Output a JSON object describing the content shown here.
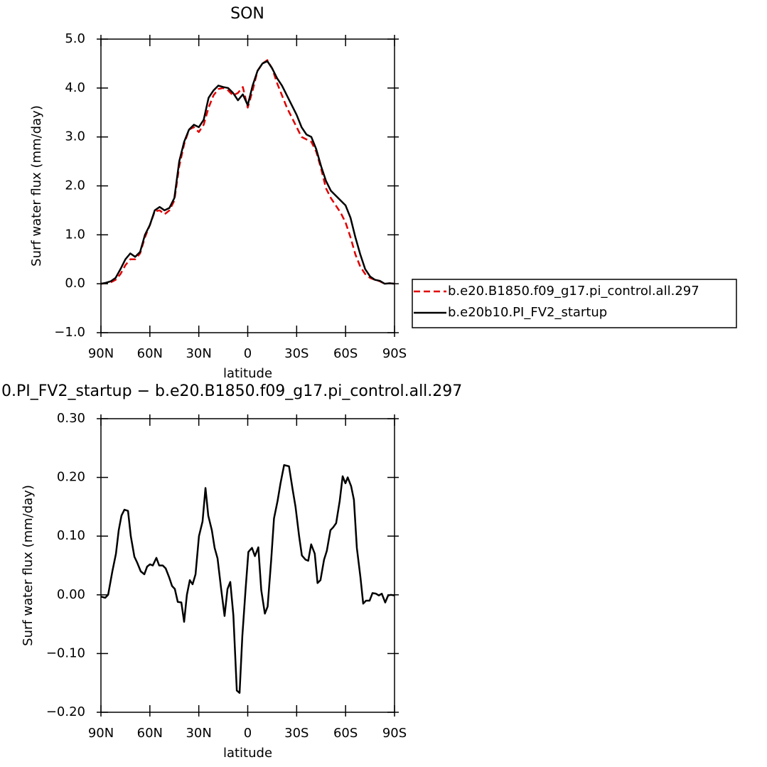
{
  "chart_data": [
    {
      "type": "line",
      "title": "SON",
      "xlabel": "latitude",
      "ylabel": "Surf water flux (mm/day)",
      "x": [
        90,
        87,
        84,
        81,
        78,
        75,
        72,
        69,
        66,
        63,
        60,
        57,
        54,
        51,
        48,
        45,
        42,
        39,
        36,
        33,
        30,
        27,
        24,
        21,
        18,
        15,
        12,
        9,
        6,
        3,
        0,
        -3,
        -6,
        -9,
        -12,
        -15,
        -18,
        -21,
        -24,
        -27,
        -30,
        -33,
        -36,
        -39,
        -42,
        -45,
        -48,
        -51,
        -54,
        -57,
        -60,
        -63,
        -66,
        -69,
        -72,
        -75,
        -78,
        -81,
        -84,
        -87,
        -90
      ],
      "series": [
        {
          "name": "b.e20.B1850.f09_g17.pi_control.all.297",
          "color": "#e00000",
          "dashed": true,
          "values": [
            0,
            0.01,
            0.03,
            0.08,
            0.2,
            0.38,
            0.5,
            0.5,
            0.62,
            0.95,
            1.2,
            1.48,
            1.5,
            1.42,
            1.5,
            1.7,
            2.4,
            2.85,
            3.15,
            3.2,
            3.1,
            3.25,
            3.6,
            3.85,
            3.98,
            4.0,
            3.95,
            3.85,
            3.9,
            4.02,
            3.6,
            3.95,
            4.35,
            4.5,
            4.57,
            4.4,
            4.1,
            3.85,
            3.6,
            3.4,
            3.2,
            3.0,
            2.95,
            2.9,
            2.7,
            2.35,
            1.95,
            1.75,
            1.6,
            1.45,
            1.25,
            0.95,
            0.6,
            0.35,
            0.2,
            0.12,
            0.08,
            0.05,
            0,
            0.01,
            0
          ]
        },
        {
          "name": "b.e20b10.PI_FV2_startup",
          "color": "#000000",
          "dashed": false,
          "values": [
            0,
            0.02,
            0.05,
            0.12,
            0.3,
            0.5,
            0.62,
            0.55,
            0.65,
            1.0,
            1.2,
            1.5,
            1.57,
            1.5,
            1.55,
            1.75,
            2.5,
            2.9,
            3.15,
            3.25,
            3.2,
            3.35,
            3.8,
            3.95,
            4.05,
            4.02,
            4.0,
            3.9,
            3.75,
            3.87,
            3.65,
            4.05,
            4.35,
            4.5,
            4.55,
            4.4,
            4.2,
            4.05,
            3.85,
            3.65,
            3.45,
            3.2,
            3.05,
            3.0,
            2.75,
            2.4,
            2.1,
            1.9,
            1.8,
            1.7,
            1.6,
            1.35,
            0.95,
            0.6,
            0.3,
            0.15,
            0.08,
            0.06,
            0,
            0.01,
            0
          ]
        }
      ],
      "xlim": [
        90,
        -90
      ],
      "xticks": [
        {
          "value": 90,
          "label": "90N"
        },
        {
          "value": 60,
          "label": "60N"
        },
        {
          "value": 30,
          "label": "30N"
        },
        0,
        {
          "value": -30,
          "label": "30S"
        },
        {
          "value": -60,
          "label": "60S"
        },
        {
          "value": -90,
          "label": "90S"
        }
      ],
      "ylim": [
        -1,
        5
      ],
      "yticks": [
        {
          "value": -1,
          "label": "−1.0"
        },
        {
          "value": 0,
          "label": "0.0"
        },
        {
          "value": 1,
          "label": "1.0"
        },
        {
          "value": 2,
          "label": "2.0"
        },
        {
          "value": 3,
          "label": "3.0"
        },
        {
          "value": 4,
          "label": "4.0"
        },
        {
          "value": 5,
          "label": "5.0"
        }
      ],
      "legend": "right"
    },
    {
      "type": "line",
      "title": "0.PI_FV2_startup − b.e20.B1850.f09_g17.pi_control.all.297",
      "xlabel": "latitude",
      "ylabel": "Surf water flux (mm/day)",
      "x": [
        90,
        87.4,
        85.6,
        83,
        80.8,
        79.1,
        77.4,
        75.6,
        73.4,
        71.7,
        69.5,
        67.8,
        65.6,
        63.4,
        61.7,
        59.9,
        58.2,
        56,
        54.3,
        52.1,
        50.3,
        48.2,
        46.4,
        44.7,
        42.9,
        40.7,
        39,
        37.3,
        35.5,
        33.8,
        32,
        29.9,
        27.7,
        25.9,
        24.2,
        22,
        20.3,
        18.5,
        16.3,
        14.2,
        12.4,
        10.7,
        8.8,
        6.7,
        5,
        3.3,
        1.3,
        -0.4,
        -2.6,
        -4.4,
        -6.5,
        -8.3,
        -10.5,
        -12.2,
        -14.4,
        -16.1,
        -18.3,
        -20.1,
        -22.3,
        -25.3,
        -27.5,
        -29.3,
        -31.5,
        -33.2,
        -35.4,
        -37.1,
        -38.9,
        -41.1,
        -42.8,
        -44.6,
        -46.8,
        -48.5,
        -50.7,
        -52.4,
        -54.2,
        -56.4,
        -58.2,
        -59.9,
        -61.3,
        -63.4,
        -65.1,
        -66.9,
        -69.1,
        -70.8,
        -72.5,
        -74.7,
        -76.5,
        -78.6,
        -80.4,
        -82.2,
        -84.3,
        -86.1,
        -87.8,
        -90
      ],
      "series": [
        {
          "color": "#000000",
          "dashed": false,
          "values": [
            -0.003,
            -0.005,
            0,
            0.04,
            0.07,
            0.11,
            0.135,
            0.145,
            0.143,
            0.1,
            0.065,
            0.055,
            0.04,
            0.035,
            0.048,
            0.052,
            0.05,
            0.063,
            0.05,
            0.05,
            0.045,
            0.03,
            0.015,
            0.01,
            -0.012,
            -0.013,
            -0.046,
            0,
            0.025,
            0.018,
            0.035,
            0.1,
            0.125,
            0.182,
            0.135,
            0.11,
            0.08,
            0.062,
            0.01,
            -0.036,
            0.01,
            0.022,
            -0.035,
            -0.163,
            -0.167,
            -0.07,
            0.01,
            0.073,
            0.08,
            0.066,
            0.081,
            0.008,
            -0.032,
            -0.02,
            0.06,
            0.13,
            0.16,
            0.19,
            0.221,
            0.219,
            0.18,
            0.15,
            0.1,
            0.067,
            0.06,
            0.058,
            0.086,
            0.07,
            0.02,
            0.025,
            0.06,
            0.075,
            0.11,
            0.115,
            0.122,
            0.16,
            0.202,
            0.19,
            0.2,
            0.185,
            0.162,
            0.08,
            0.03,
            -0.015,
            -0.01,
            -0.01,
            0.003,
            0.002,
            -0.001,
            0.002,
            -0.013,
            -0.001,
            0,
            -0.001
          ]
        }
      ],
      "xlim": [
        90,
        -90
      ],
      "xticks": [
        {
          "value": 90,
          "label": "90N"
        },
        {
          "value": 60,
          "label": "60N"
        },
        {
          "value": 30,
          "label": "30N"
        },
        0,
        {
          "value": -30,
          "label": "30S"
        },
        {
          "value": -60,
          "label": "60S"
        },
        {
          "value": -90,
          "label": "90S"
        }
      ],
      "ylim": [
        -0.2,
        0.3
      ],
      "yticks": [
        {
          "value": -0.2,
          "label": "−0.20"
        },
        {
          "value": -0.1,
          "label": "−0.10"
        },
        {
          "value": 0,
          "label": "0.00"
        },
        {
          "value": 0.1,
          "label": "0.10"
        },
        {
          "value": 0.2,
          "label": "0.20"
        },
        {
          "value": 0.3,
          "label": "0.30"
        }
      ]
    }
  ]
}
